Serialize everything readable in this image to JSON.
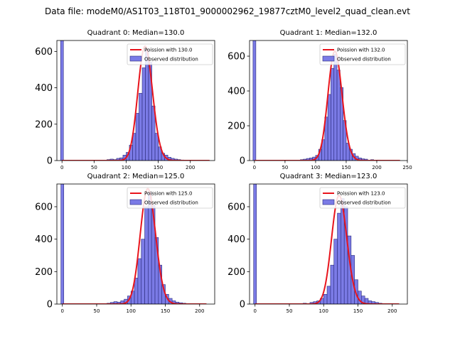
{
  "figure_title": "Data file: modeM0/AS1T03_118T01_9000002962_19877cztM0_level2_quad_clean.evt",
  "colors": {
    "bar_fill": "#7b7be6",
    "bar_edge": "#2a2a7a",
    "poisson": "#e8141c",
    "axis": "#000000"
  },
  "chart_data": [
    {
      "type": "bar+line",
      "title": "Quadrant 0: Median=130.0",
      "median": 130.0,
      "xlim": [
        -8,
        238
      ],
      "ylim": [
        0,
        660
      ],
      "xticks": [
        0,
        50,
        100,
        150,
        200
      ],
      "yticks": [
        0,
        200,
        400,
        600
      ],
      "legend": [
        "Poission with 130.0",
        "Observed distribution"
      ],
      "zero_bar": {
        "x": 0,
        "value": 660
      },
      "bin_width": 5,
      "hist": [
        [
          70,
          5
        ],
        [
          75,
          8
        ],
        [
          80,
          5
        ],
        [
          85,
          12
        ],
        [
          90,
          15
        ],
        [
          95,
          30
        ],
        [
          100,
          45
        ],
        [
          105,
          85
        ],
        [
          110,
          150
        ],
        [
          115,
          260
        ],
        [
          120,
          370
        ],
        [
          125,
          510
        ],
        [
          130,
          610
        ],
        [
          135,
          540
        ],
        [
          140,
          300
        ],
        [
          145,
          150
        ],
        [
          150,
          75
        ],
        [
          155,
          40
        ],
        [
          160,
          30
        ],
        [
          165,
          18
        ],
        [
          170,
          12
        ],
        [
          175,
          8
        ],
        [
          180,
          5
        ],
        [
          185,
          3
        ]
      ],
      "poisson_x_range": [
        0,
        230
      ]
    },
    {
      "type": "bar+line",
      "title": "Quadrant 1: Median=132.0",
      "median": 132.0,
      "xlim": [
        -8,
        250
      ],
      "ylim": [
        0,
        690
      ],
      "xticks": [
        0,
        50,
        100,
        150,
        200,
        250
      ],
      "yticks": [
        0,
        200,
        400,
        600
      ],
      "legend": [
        "Poission with 132.0",
        "Observed distribution"
      ],
      "zero_bar": {
        "x": 0,
        "value": 690
      },
      "bin_width": 5,
      "hist": [
        [
          75,
          5
        ],
        [
          80,
          8
        ],
        [
          85,
          12
        ],
        [
          90,
          15
        ],
        [
          95,
          20
        ],
        [
          100,
          30
        ],
        [
          105,
          65
        ],
        [
          110,
          120
        ],
        [
          115,
          250
        ],
        [
          120,
          380
        ],
        [
          125,
          530
        ],
        [
          130,
          610
        ],
        [
          135,
          520
        ],
        [
          140,
          420
        ],
        [
          145,
          230
        ],
        [
          150,
          100
        ],
        [
          155,
          65
        ],
        [
          160,
          40
        ],
        [
          165,
          25
        ],
        [
          170,
          15
        ],
        [
          175,
          10
        ],
        [
          180,
          8
        ],
        [
          190,
          5
        ],
        [
          200,
          3
        ]
      ],
      "poisson_x_range": [
        0,
        238
      ]
    },
    {
      "type": "bar+line",
      "title": "Quadrant 2: Median=125.0",
      "median": 125.0,
      "xlim": [
        -8,
        222
      ],
      "ylim": [
        0,
        740
      ],
      "xticks": [
        0,
        50,
        100,
        150,
        200
      ],
      "yticks": [
        0,
        200,
        400,
        600
      ],
      "legend": [
        "Poission with 125.0",
        "Observed distribution"
      ],
      "zero_bar": {
        "x": 0,
        "value": 740
      },
      "bin_width": 5,
      "hist": [
        [
          65,
          5
        ],
        [
          70,
          10
        ],
        [
          75,
          15
        ],
        [
          80,
          12
        ],
        [
          85,
          20
        ],
        [
          90,
          30
        ],
        [
          95,
          50
        ],
        [
          100,
          80
        ],
        [
          105,
          160
        ],
        [
          110,
          280
        ],
        [
          115,
          400
        ],
        [
          120,
          600
        ],
        [
          125,
          690
        ],
        [
          130,
          610
        ],
        [
          135,
          410
        ],
        [
          140,
          240
        ],
        [
          145,
          120
        ],
        [
          150,
          60
        ],
        [
          155,
          35
        ],
        [
          160,
          20
        ],
        [
          165,
          12
        ],
        [
          170,
          8
        ],
        [
          175,
          5
        ],
        [
          180,
          3
        ]
      ],
      "poisson_x_range": [
        0,
        210
      ]
    },
    {
      "type": "bar+line",
      "title": "Quadrant 3: Median=123.0",
      "median": 123.0,
      "xlim": [
        -8,
        222
      ],
      "ylim": [
        0,
        740
      ],
      "xticks": [
        0,
        50,
        100,
        150,
        200
      ],
      "yticks": [
        0,
        200,
        400,
        600
      ],
      "legend": [
        "Poission with 123.0",
        "Observed distribution"
      ],
      "zero_bar": {
        "x": 0,
        "value": 740
      },
      "bin_width": 5,
      "hist": [
        [
          70,
          5
        ],
        [
          80,
          10
        ],
        [
          85,
          15
        ],
        [
          90,
          20
        ],
        [
          95,
          35
        ],
        [
          100,
          60
        ],
        [
          105,
          110
        ],
        [
          110,
          240
        ],
        [
          115,
          400
        ],
        [
          120,
          560
        ],
        [
          125,
          650
        ],
        [
          130,
          600
        ],
        [
          135,
          420
        ],
        [
          140,
          300
        ],
        [
          145,
          150
        ],
        [
          150,
          80
        ],
        [
          155,
          50
        ],
        [
          160,
          35
        ],
        [
          165,
          20
        ],
        [
          170,
          15
        ],
        [
          175,
          10
        ],
        [
          180,
          5
        ],
        [
          185,
          3
        ]
      ],
      "poisson_x_range": [
        0,
        210
      ]
    }
  ]
}
